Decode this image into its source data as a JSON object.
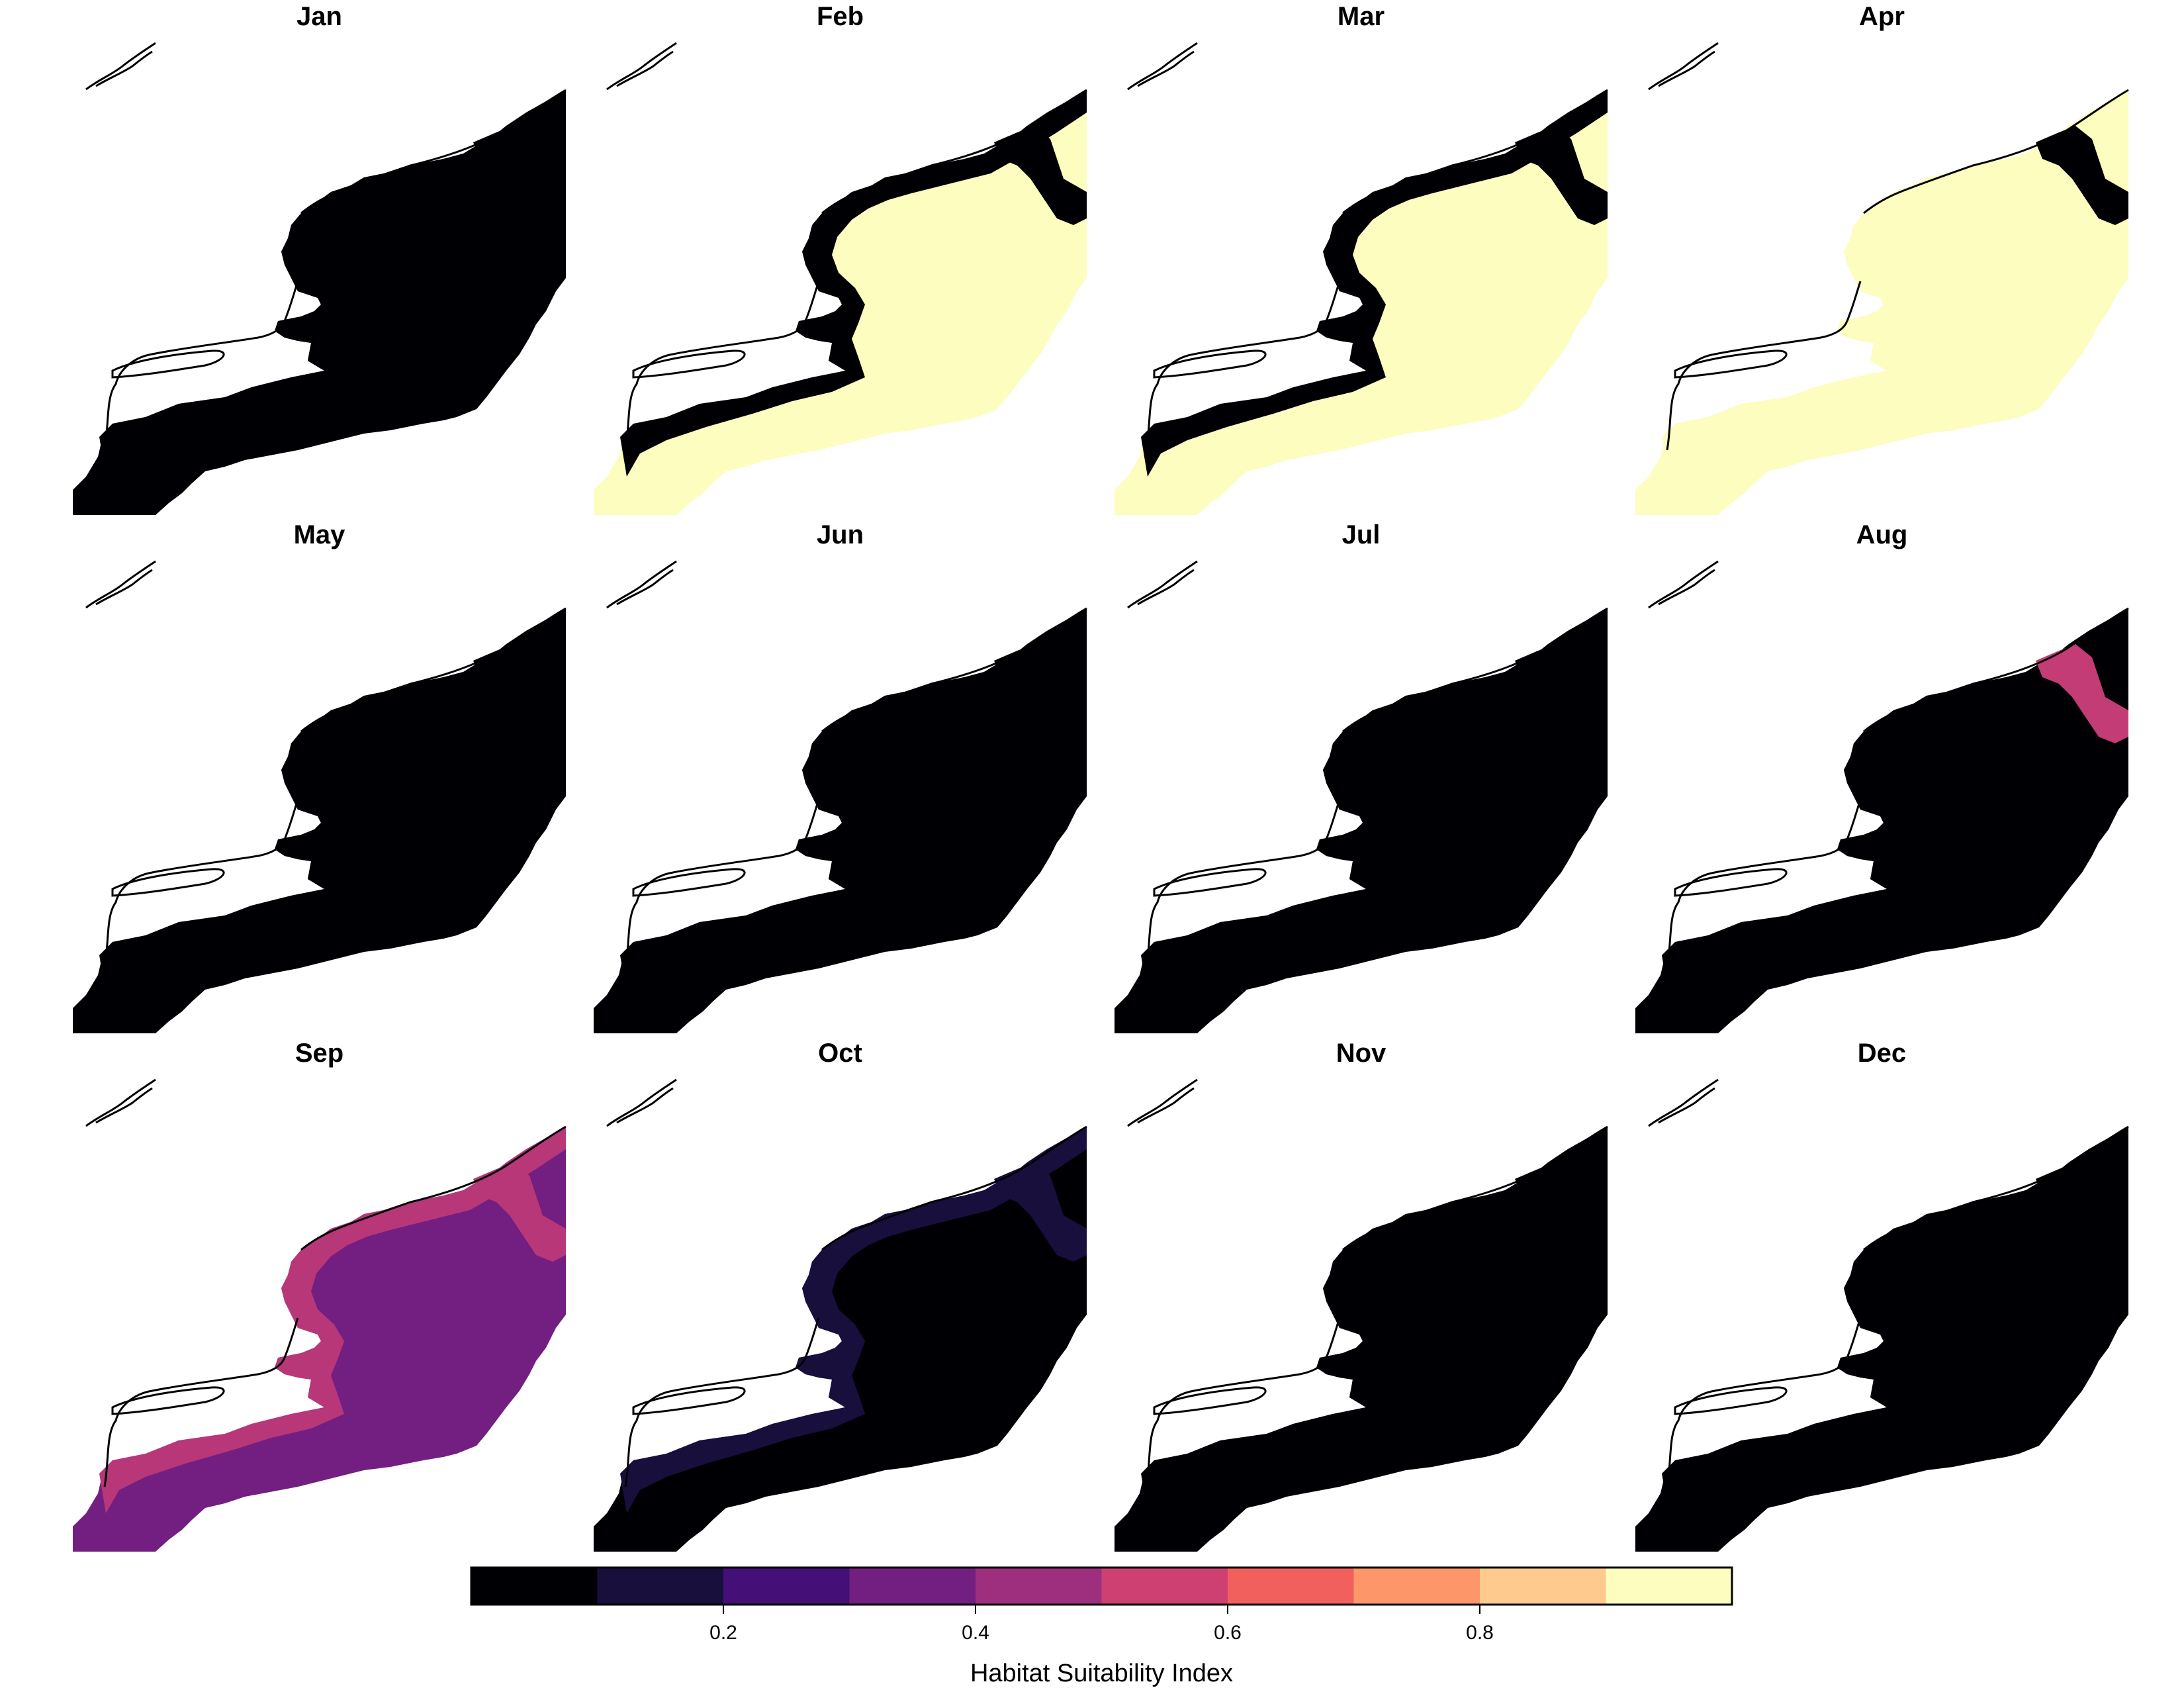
{
  "panels": [
    {
      "month": "Jan",
      "fill": "#000004",
      "coast": "#000004",
      "ne_patch": "#000004"
    },
    {
      "month": "Feb",
      "fill": "#fcfdbf",
      "coast": "#000004",
      "ne_patch": "#000004"
    },
    {
      "month": "Mar",
      "fill": "#fcfdbf",
      "coast": "#000004",
      "ne_patch": "#000004"
    },
    {
      "month": "Apr",
      "fill": "#fcfdbf",
      "coast": "#fcfdbf",
      "ne_patch": "#000004"
    },
    {
      "month": "May",
      "fill": "#000004",
      "coast": "#000004",
      "ne_patch": "#000004"
    },
    {
      "month": "Jun",
      "fill": "#000004",
      "coast": "#000004",
      "ne_patch": "#000004"
    },
    {
      "month": "Jul",
      "fill": "#000004",
      "coast": "#000004",
      "ne_patch": "#000004"
    },
    {
      "month": "Aug",
      "fill": "#000004",
      "coast": "#000004",
      "ne_patch": "#c43c75"
    },
    {
      "month": "Sep",
      "fill": "#721f81",
      "coast": "#b73779",
      "ne_patch": "#b73779"
    },
    {
      "month": "Oct",
      "fill": "#000004",
      "coast": "#180f3d",
      "ne_patch": "#180f3d"
    },
    {
      "month": "Nov",
      "fill": "#000004",
      "coast": "#000004",
      "ne_patch": "#000004"
    },
    {
      "month": "Dec",
      "fill": "#000004",
      "coast": "#000004",
      "ne_patch": "#000004"
    }
  ],
  "legend": {
    "title": "Habitat Suitability Index",
    "colors": [
      "#000004",
      "#180f3d",
      "#440f76",
      "#721f81",
      "#9e2f7f",
      "#cd4071",
      "#f1605d",
      "#fd9668",
      "#feca8d",
      "#fcfdbf"
    ],
    "breaks": [
      0,
      0.1,
      0.2,
      0.3,
      0.4,
      0.5,
      0.6,
      0.7,
      0.8,
      0.9,
      1.0
    ],
    "tick_values": [
      0.2,
      0.4,
      0.6,
      0.8
    ],
    "tick_labels": [
      "0.2",
      "0.4",
      "0.6",
      "0.8"
    ]
  }
}
